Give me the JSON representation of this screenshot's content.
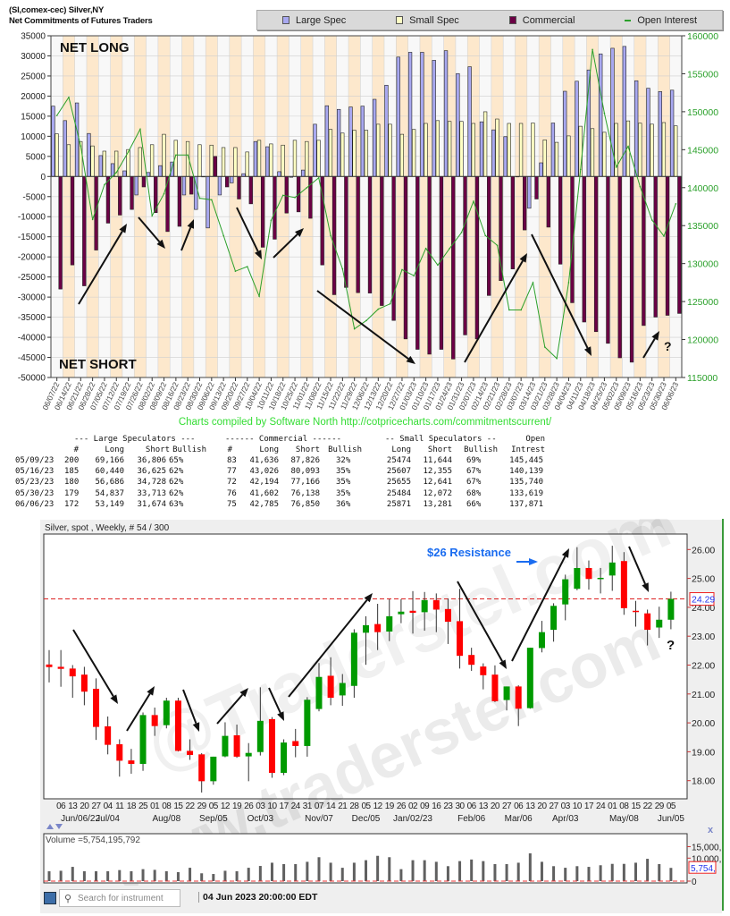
{
  "cot": {
    "title_line1": "(SI,comex-cec) Silver,NY",
    "title_line2": "Net Commitments of Futures Traders",
    "legend": [
      {
        "label": "Large Spec",
        "color": "#a8a8f0"
      },
      {
        "label": "Small Spec",
        "color": "#ffffc4"
      },
      {
        "label": "Commercial",
        "color": "#6b0045"
      },
      {
        "label": "Open Interest",
        "color": "#2aa02a"
      }
    ],
    "annotations": {
      "net_long": "NET LONG",
      "net_short": "NET SHORT",
      "question": "?"
    },
    "credit": "Charts compiled by Software North  http://cotpricecharts.com/commitmentscurrent/"
  },
  "chart_data": [
    {
      "type": "bar",
      "subtype": "grouped bar with line overlay",
      "x": [
        "06/07/22",
        "06/14/22",
        "06/21/22",
        "06/28/22",
        "07/05/22",
        "07/12/22",
        "07/19/22",
        "07/26/22",
        "08/02/22",
        "08/09/22",
        "08/16/22",
        "08/23/22",
        "08/30/22",
        "09/06/22",
        "09/13/22",
        "09/20/22",
        "09/27/22",
        "10/04/22",
        "10/11/22",
        "10/18/22",
        "10/25/22",
        "11/01/22",
        "11/08/22",
        "11/15/22",
        "11/22/22",
        "11/29/22",
        "12/06/22",
        "12/13/22",
        "12/20/22",
        "12/27/22",
        "01/03/23",
        "01/10/23",
        "01/17/23",
        "01/24/23",
        "01/31/23",
        "02/07/23",
        "02/14/23",
        "02/21/23",
        "02/28/23",
        "03/07/23",
        "03/14/23",
        "03/21/23",
        "03/28/23",
        "04/04/23",
        "04/11/23",
        "04/18/23",
        "04/25/23",
        "05/02/23",
        "05/09/23",
        "05/16/23",
        "05/23/23",
        "05/30/23",
        "06/06/23"
      ],
      "series": [
        {
          "name": "Large Spec",
          "axis": "left",
          "values": [
            17500,
            13900,
            18300,
            10700,
            5200,
            3200,
            1400,
            -4600,
            1000,
            2700,
            3600,
            -4600,
            -8200,
            -12800,
            -4600,
            -1600,
            700,
            8700,
            7400,
            1200,
            -200,
            1600,
            13000,
            17600,
            16700,
            17300,
            17500,
            19200,
            22700,
            29700,
            30900,
            30900,
            28900,
            31300,
            25600,
            27300,
            13600,
            11600,
            9900,
            0,
            -7900,
            3400,
            13300,
            21200,
            23700,
            26500,
            30500,
            31900,
            32360,
            23815,
            21958,
            21124,
            21475
          ]
        },
        {
          "name": "Small Spec",
          "axis": "left",
          "values": [
            10600,
            7900,
            8700,
            7600,
            6300,
            6300,
            6700,
            7200,
            7900,
            10500,
            9000,
            8700,
            7900,
            7800,
            7200,
            7200,
            6100,
            9000,
            8100,
            7800,
            9000,
            8700,
            9000,
            11700,
            10800,
            11500,
            11500,
            13000,
            13000,
            10500,
            11700,
            13200,
            13900,
            13700,
            13700,
            13200,
            16100,
            14300,
            13200,
            13200,
            13300,
            9100,
            8500,
            10100,
            12500,
            11900,
            11000,
            13200,
            13830,
            13252,
            13014,
            13412,
            12590
          ]
        },
        {
          "name": "Commercial",
          "axis": "left",
          "values": [
            -28000,
            -22000,
            -27200,
            -18300,
            -11600,
            -9600,
            -8200,
            -2600,
            -9000,
            -13700,
            -12400,
            -4400,
            0,
            5000,
            -2600,
            -5600,
            -6800,
            -17600,
            -15600,
            -9100,
            -8800,
            -10400,
            -22000,
            -29400,
            -27600,
            -28900,
            -29000,
            -32100,
            -35800,
            -40400,
            -43000,
            -44200,
            -43000,
            -45400,
            -39400,
            -40400,
            -29600,
            -25900,
            -23000,
            -13300,
            -5600,
            -12600,
            -21800,
            -31400,
            -36200,
            -38600,
            -41500,
            -45100,
            -46190,
            -37067,
            -34972,
            -34536,
            -34065
          ]
        },
        {
          "name": "Open Interest",
          "axis": "right",
          "type": "line",
          "values": [
            149500,
            151900,
            145500,
            135800,
            140400,
            142000,
            144700,
            147700,
            136300,
            139200,
            144300,
            144300,
            138600,
            138400,
            133700,
            129000,
            129600,
            125700,
            135700,
            139000,
            138700,
            140000,
            141300,
            133700,
            129300,
            121400,
            122500,
            124000,
            124700,
            129200,
            128400,
            132000,
            129800,
            132000,
            134100,
            138200,
            133700,
            132400,
            123900,
            123900,
            127500,
            119000,
            117500,
            127500,
            142400,
            158200,
            149800,
            142700,
            145445,
            140139,
            135740,
            133619,
            137871
          ]
        }
      ],
      "ylim_left": [
        -50000,
        35000
      ],
      "ylim_right": [
        115000,
        160000
      ],
      "yticks_left": [
        "35000",
        "30000",
        "25000",
        "20000",
        "15000",
        "10000",
        "5000",
        "0",
        "-5000",
        "-10000",
        "-15000",
        "-20000",
        "-25000",
        "-30000",
        "-35000",
        "-40000",
        "-45000",
        "-50000"
      ],
      "yticks_right": [
        "160000",
        "155000",
        "150000",
        "145000",
        "140000",
        "135000",
        "130000",
        "125000",
        "120000",
        "115000"
      ],
      "grid": true,
      "legend_position": "top-right"
    },
    {
      "type": "candlestick",
      "title": "Silver, spot , Weekly, # 54 / 300",
      "ohlc": [
        [
          22.02,
          22.52,
          21.4,
          21.93
        ],
        [
          21.94,
          22.52,
          21.25,
          21.87
        ],
        [
          21.88,
          22.0,
          20.87,
          21.61
        ],
        [
          21.67,
          21.94,
          20.61,
          21.08
        ],
        [
          21.18,
          21.54,
          19.41,
          19.86
        ],
        [
          19.88,
          20.22,
          18.91,
          19.24
        ],
        [
          19.26,
          19.43,
          18.14,
          18.69
        ],
        [
          18.7,
          19.1,
          18.24,
          18.58
        ],
        [
          18.58,
          20.36,
          18.34,
          20.27
        ],
        [
          20.27,
          20.53,
          19.55,
          19.89
        ],
        [
          19.92,
          20.87,
          19.81,
          20.77
        ],
        [
          20.77,
          20.87,
          19.01,
          19.03
        ],
        [
          19.03,
          19.43,
          18.72,
          18.89
        ],
        [
          18.91,
          18.95,
          17.59,
          17.98
        ],
        [
          17.98,
          18.83,
          17.86,
          18.83
        ],
        [
          18.84,
          20.02,
          18.81,
          19.55
        ],
        [
          19.57,
          19.94,
          18.79,
          18.83
        ],
        [
          18.84,
          19.3,
          17.98,
          18.96
        ],
        [
          18.99,
          21.23,
          18.87,
          20.07
        ],
        [
          20.13,
          20.2,
          18.1,
          18.27
        ],
        [
          18.27,
          19.43,
          18.19,
          19.32
        ],
        [
          19.37,
          19.79,
          18.81,
          19.2
        ],
        [
          19.2,
          20.89,
          18.83,
          20.8
        ],
        [
          20.48,
          22.07,
          20.4,
          21.59
        ],
        [
          21.63,
          22.27,
          20.61,
          20.87
        ],
        [
          20.95,
          21.69,
          20.59,
          21.38
        ],
        [
          21.28,
          23.24,
          20.87,
          23.12
        ],
        [
          23.12,
          23.69,
          22.01,
          23.38
        ],
        [
          23.42,
          24.12,
          22.52,
          23.14
        ],
        [
          23.16,
          24.28,
          22.83,
          23.69
        ],
        [
          23.76,
          24.28,
          23.45,
          23.85
        ],
        [
          23.88,
          24.56,
          23.09,
          23.81
        ],
        [
          23.83,
          24.53,
          23.19,
          24.25
        ],
        [
          24.25,
          24.48,
          23.14,
          23.92
        ],
        [
          23.94,
          24.3,
          22.73,
          23.5
        ],
        [
          23.52,
          24.64,
          21.88,
          22.32
        ],
        [
          22.35,
          22.6,
          21.8,
          22.01
        ],
        [
          21.95,
          22.06,
          21.16,
          21.65
        ],
        [
          21.67,
          21.99,
          20.72,
          20.75
        ],
        [
          20.79,
          21.26,
          20.43,
          21.26
        ],
        [
          21.26,
          21.3,
          19.89,
          20.49
        ],
        [
          20.51,
          22.6,
          20.49,
          22.6
        ],
        [
          22.59,
          23.53,
          22.44,
          23.14
        ],
        [
          23.22,
          24.14,
          22.81,
          24.05
        ],
        [
          24.1,
          25.13,
          23.55,
          24.97
        ],
        [
          24.64,
          26.08,
          24.59,
          25.36
        ],
        [
          25.36,
          25.62,
          24.61,
          24.98
        ],
        [
          24.98,
          25.36,
          24.48,
          25.02
        ],
        [
          25.1,
          26.13,
          24.57,
          25.55
        ],
        [
          25.6,
          25.91,
          23.74,
          23.97
        ],
        [
          23.88,
          24.22,
          23.33,
          23.84
        ],
        [
          23.79,
          23.92,
          22.68,
          23.22
        ],
        [
          23.3,
          24.02,
          22.94,
          23.57
        ],
        [
          23.57,
          24.54,
          23.24,
          24.29
        ]
      ],
      "day_ticks": [
        "",
        "06",
        "13",
        "20",
        "27",
        "04",
        "11",
        "18",
        "25",
        "01",
        "08",
        "15",
        "22",
        "29",
        "05",
        "12",
        "19",
        "26",
        "03",
        "10",
        "17",
        "24",
        "31",
        "07",
        "14",
        "21",
        "28",
        "05",
        "12",
        "19",
        "26",
        "02",
        "09",
        "16",
        "23",
        "30",
        "06",
        "13",
        "20",
        "27",
        "06",
        "13",
        "20",
        "27",
        "03",
        "10",
        "17",
        "24",
        "01",
        "08",
        "15",
        "22",
        "29",
        "05"
      ],
      "month_ticks": [
        {
          "i": 1,
          "label": "Jun/06/22"
        },
        {
          "i": 5,
          "label": "Jul/04"
        },
        {
          "i": 10,
          "label": "Aug/08"
        },
        {
          "i": 14,
          "label": "Sep/05"
        },
        {
          "i": 18,
          "label": "Oct/03"
        },
        {
          "i": 23,
          "label": "Nov/07"
        },
        {
          "i": 27,
          "label": "Dec/05"
        },
        {
          "i": 31,
          "label": "Jan/02/23"
        },
        {
          "i": 36,
          "label": "Feb/06"
        },
        {
          "i": 40,
          "label": "Mar/06"
        },
        {
          "i": 44,
          "label": "Apr/03"
        },
        {
          "i": 49,
          "label": "May/08"
        },
        {
          "i": 53,
          "label": "Jun/05"
        }
      ],
      "yticks": [
        "18.00",
        "19.00",
        "20.00",
        "21.00",
        "22.00",
        "23.00",
        "24.00",
        "25.00",
        "26.00"
      ],
      "ylim": [
        17.4,
        26.5
      ],
      "last_price": 24.29,
      "last_price_label": "24.29",
      "up_color": "#009a00",
      "down_color": "#ff0000"
    },
    {
      "type": "bar",
      "title": "Volume =5,754,195,792",
      "values": [
        4300,
        4500,
        6200,
        4300,
        4300,
        4300,
        4800,
        4300,
        5200,
        4900,
        4300,
        3900,
        5800,
        3400,
        3100,
        4500,
        4300,
        5800,
        6600,
        8000,
        7400,
        7400,
        8400,
        10400,
        8000,
        5800,
        8000,
        9100,
        11000,
        10400,
        5200,
        9100,
        9100,
        8400,
        6500,
        8700,
        9400,
        8700,
        7400,
        7400,
        8000,
        12100,
        8400,
        6500,
        5800,
        6500,
        6200,
        6900,
        7500,
        7500,
        8000,
        9700,
        7400,
        5754
      ],
      "yticks": [
        "15,000,",
        "10,000,",
        "0"
      ],
      "ylim": [
        0,
        17000
      ],
      "last_value_label": "5,754,"
    }
  ],
  "cot_table": {
    "group_headers": [
      "--- Large Speculators ---",
      "------ Commercial ------",
      "-- Small Speculators --",
      "Open"
    ],
    "columns": [
      "#",
      "Long",
      "Short",
      "Bullish",
      "#",
      "Long",
      "Short",
      "Bullish",
      "Long",
      "Short",
      "Bullish",
      "Intrest"
    ],
    "rows": [
      [
        "05/09/23",
        "200",
        "69,166",
        "36,806",
        "65%",
        "83",
        "41,636",
        "87,826",
        "32%",
        "25474",
        "11,644",
        "69%",
        "145,445"
      ],
      [
        "05/16/23",
        "185",
        "60,440",
        "36,625",
        "62%",
        "77",
        "43,026",
        "80,093",
        "35%",
        "25607",
        "12,355",
        "67%",
        "140,139"
      ],
      [
        "05/23/23",
        "180",
        "56,686",
        "34,728",
        "62%",
        "72",
        "42,194",
        "77,166",
        "35%",
        "25655",
        "12,641",
        "67%",
        "135,740"
      ],
      [
        "05/30/23",
        "179",
        "54,837",
        "33,713",
        "62%",
        "76",
        "41,602",
        "76,138",
        "35%",
        "25484",
        "12,072",
        "68%",
        "133,619"
      ],
      [
        "06/06/23",
        "172",
        "53,149",
        "31,674",
        "63%",
        "75",
        "42,785",
        "76,850",
        "36%",
        "25871",
        "13,281",
        "66%",
        "137,871"
      ]
    ]
  },
  "price_chart": {
    "header": "Silver, spot , Weekly, # 54 / 300",
    "resistance_label": "$26 Resistance",
    "question": "?",
    "resistance_color": "#1a6cf0"
  },
  "volume_panel": {
    "label": "Volume =5,754,195,792",
    "close_glyph": "x"
  },
  "bottom_bar": {
    "search_placeholder": "Search for instrument",
    "datetime": "04 Jun 2023 20:00:00 EDT"
  },
  "watermark": [
    "@Traderstel.com",
    "www.traderstel.com"
  ]
}
